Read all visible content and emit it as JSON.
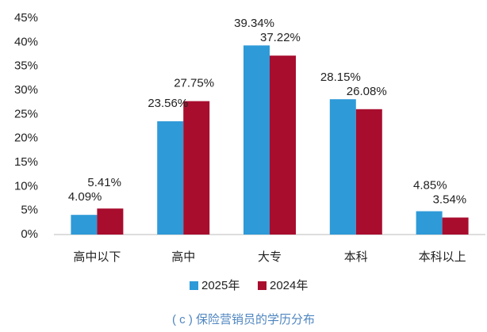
{
  "chart_data": {
    "type": "bar",
    "categories": [
      "高中以下",
      "高中",
      "大专",
      "本科",
      "本科以上"
    ],
    "series": [
      {
        "name": "2025年",
        "color": "#2e9ad8",
        "values": [
          4.09,
          23.56,
          39.34,
          28.15,
          4.85
        ],
        "value_labels": [
          "4.09%",
          "23.56%",
          "39.34%",
          "28.15%",
          "4.85%"
        ]
      },
      {
        "name": "2024年",
        "color": "#a80d2e",
        "values": [
          5.41,
          27.75,
          37.22,
          26.08,
          3.54
        ],
        "value_labels": [
          "5.41%",
          "27.75%",
          "37.22%",
          "26.08%",
          "3.54%"
        ]
      }
    ],
    "ylim": [
      0,
      45
    ],
    "yticks": [
      {
        "value": 0,
        "label": "0%"
      },
      {
        "value": 5,
        "label": "5%"
      },
      {
        "value": 10,
        "label": "10%"
      },
      {
        "value": 15,
        "label": "15%"
      },
      {
        "value": 20,
        "label": "20%"
      },
      {
        "value": 25,
        "label": "25%"
      },
      {
        "value": 30,
        "label": "30%"
      },
      {
        "value": 35,
        "label": "35%"
      },
      {
        "value": 40,
        "label": "40%"
      },
      {
        "value": 45,
        "label": "45%"
      }
    ],
    "grid": false,
    "caption": "( c ) 保险营销员的学历分布"
  }
}
